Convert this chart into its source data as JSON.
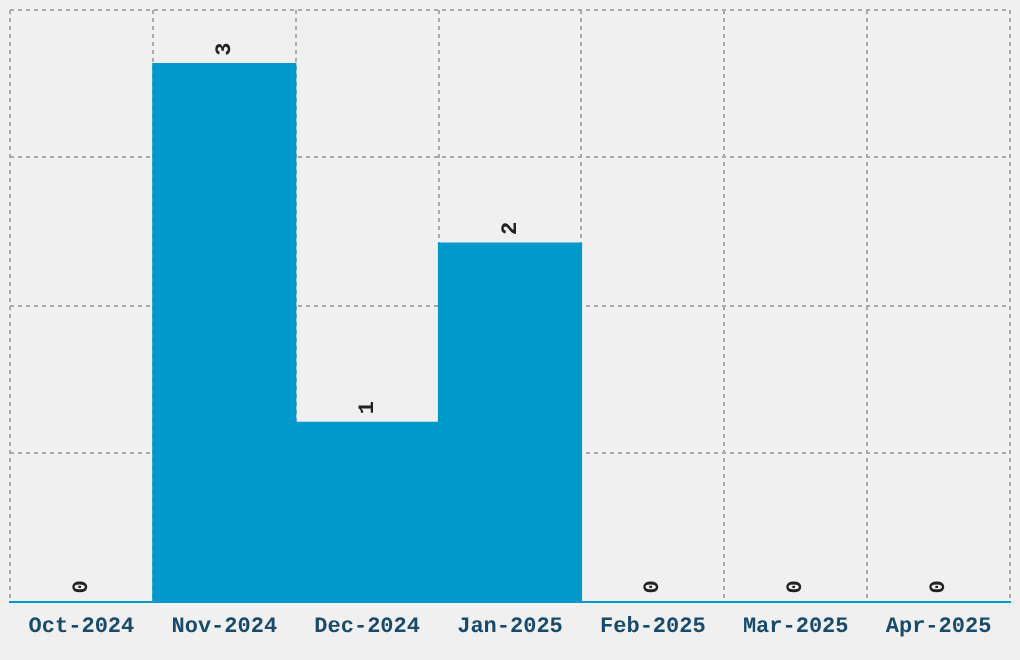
{
  "chart_data": {
    "type": "bar",
    "categories": [
      "Oct-2024",
      "Nov-2024",
      "Dec-2024",
      "Jan-2025",
      "Feb-2025",
      "Mar-2025",
      "Apr-2025"
    ],
    "values": [
      0,
      3,
      1,
      2,
      0,
      0,
      0
    ],
    "color": "#0099cc",
    "ylim": [
      0,
      3.3
    ],
    "yticks": [
      {
        "value": 0,
        "label": null
      },
      {
        "value": 0.83,
        "label": null
      },
      {
        "value": 1.65,
        "label": null
      },
      {
        "value": 2.48,
        "label": null
      },
      {
        "value": 3.3,
        "label": null
      }
    ],
    "grid": true,
    "tick_labels": "x",
    "data_labels": true
  }
}
